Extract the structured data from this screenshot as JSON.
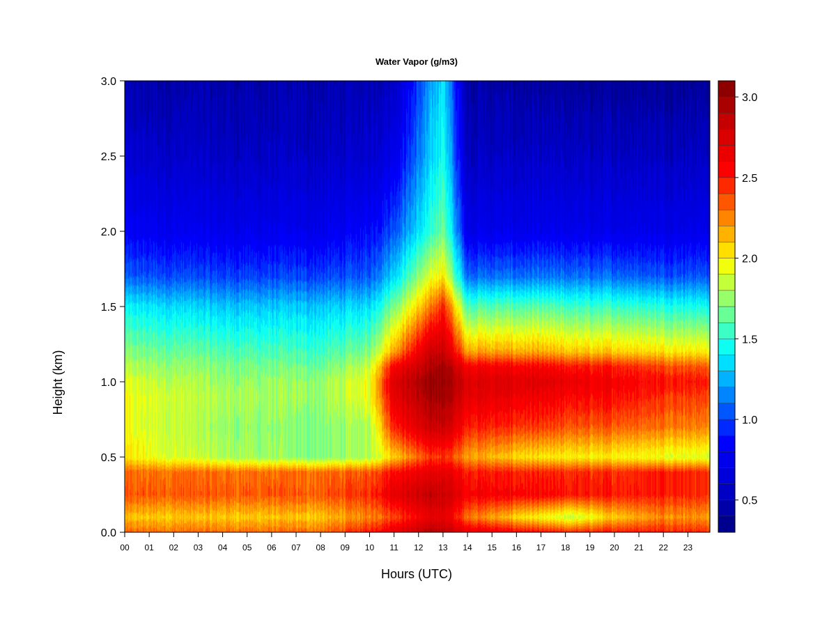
{
  "chart_data": {
    "type": "heatmap",
    "title": "Water Vapor (g/m3)",
    "xlabel": "Hours (UTC)",
    "ylabel": "Height (km)",
    "x_ticks": [
      "00",
      "01",
      "02",
      "03",
      "04",
      "05",
      "06",
      "07",
      "08",
      "09",
      "10",
      "11",
      "12",
      "13",
      "14",
      "15",
      "16",
      "17",
      "18",
      "19",
      "20",
      "21",
      "22",
      "23"
    ],
    "x_range": [
      0,
      23.9
    ],
    "y_ticks": [
      "0.0",
      "0.5",
      "1.0",
      "1.5",
      "2.0",
      "2.5",
      "3.0"
    ],
    "ylim": [
      0,
      3.0
    ],
    "colorbar": {
      "min": 0.3,
      "max": 3.1,
      "levels": 28,
      "tick_values": [
        0.5,
        1.0,
        1.5,
        2.0,
        2.5,
        3.0
      ],
      "tick_labels": [
        "0.5",
        "1.0",
        "1.5",
        "2.0",
        "2.5",
        "3.0"
      ],
      "colors": [
        "#000080",
        "#0000cd",
        "#0000ff",
        "#0080ff",
        "#00ffff",
        "#80ff80",
        "#ffff00",
        "#ff8000",
        "#ff0000",
        "#cd0000",
        "#800000"
      ]
    },
    "profile_heights_km": [
      0.0,
      0.1,
      0.25,
      0.4,
      0.5,
      0.7,
      0.9,
      1.0,
      1.1,
      1.2,
      1.5,
      1.7,
      2.0,
      2.5,
      3.0
    ],
    "profiles": [
      {
        "hour": 0,
        "values": [
          2.3,
          2.1,
          2.35,
          2.3,
          2.0,
          1.95,
          1.95,
          1.9,
          1.8,
          1.7,
          1.4,
          1.05,
          0.8,
          0.6,
          0.45
        ]
      },
      {
        "hour": 4,
        "values": [
          2.3,
          2.1,
          2.35,
          2.3,
          1.8,
          1.75,
          1.8,
          1.75,
          1.7,
          1.6,
          1.3,
          1.0,
          0.75,
          0.55,
          0.45
        ]
      },
      {
        "hour": 8,
        "values": [
          2.3,
          2.1,
          2.35,
          2.3,
          1.7,
          1.7,
          1.75,
          1.75,
          1.65,
          1.55,
          1.3,
          1.0,
          0.75,
          0.55,
          0.45
        ]
      },
      {
        "hour": 10,
        "values": [
          2.5,
          2.25,
          2.45,
          2.35,
          1.8,
          1.8,
          1.95,
          1.95,
          1.85,
          1.7,
          1.35,
          1.05,
          0.85,
          0.6,
          0.5
        ]
      },
      {
        "hour": 11,
        "values": [
          2.7,
          2.4,
          2.7,
          2.55,
          2.1,
          2.5,
          2.7,
          2.75,
          2.6,
          2.2,
          1.7,
          1.35,
          1.05,
          0.75,
          0.55
        ]
      },
      {
        "hour": 12.5,
        "values": [
          2.9,
          2.65,
          2.85,
          2.65,
          2.4,
          2.8,
          2.95,
          3.0,
          2.9,
          2.8,
          2.25,
          1.9,
          1.5,
          1.3,
          1.2
        ]
      },
      {
        "hour": 13,
        "values": [
          2.9,
          2.7,
          2.85,
          2.7,
          2.45,
          2.85,
          3.0,
          3.05,
          3.0,
          2.85,
          2.5,
          2.05,
          1.7,
          1.5,
          1.4
        ]
      },
      {
        "hour": 14,
        "values": [
          2.7,
          2.3,
          2.6,
          2.5,
          2.2,
          2.5,
          2.7,
          2.75,
          2.6,
          2.2,
          1.6,
          1.1,
          0.75,
          0.55,
          0.45
        ]
      },
      {
        "hour": 17,
        "values": [
          2.5,
          1.95,
          2.55,
          2.45,
          2.0,
          2.4,
          2.6,
          2.7,
          2.55,
          2.15,
          1.6,
          1.1,
          0.75,
          0.55,
          0.4
        ]
      },
      {
        "hour": 18.3,
        "values": [
          2.45,
          1.85,
          2.5,
          2.45,
          2.0,
          2.35,
          2.55,
          2.65,
          2.5,
          2.1,
          1.55,
          1.1,
          0.75,
          0.55,
          0.4
        ]
      },
      {
        "hour": 20,
        "values": [
          2.5,
          2.1,
          2.5,
          2.45,
          2.0,
          2.35,
          2.55,
          2.6,
          2.5,
          2.1,
          1.55,
          1.1,
          0.75,
          0.55,
          0.4
        ]
      },
      {
        "hour": 22,
        "values": [
          2.5,
          2.25,
          2.5,
          2.5,
          1.95,
          2.3,
          2.45,
          2.55,
          2.4,
          2.05,
          1.5,
          1.05,
          0.75,
          0.55,
          0.4
        ]
      },
      {
        "hour": 23.9,
        "values": [
          2.45,
          2.2,
          2.45,
          2.45,
          1.9,
          2.25,
          2.4,
          2.5,
          2.35,
          2.0,
          1.45,
          1.05,
          0.75,
          0.55,
          0.4
        ]
      }
    ]
  }
}
